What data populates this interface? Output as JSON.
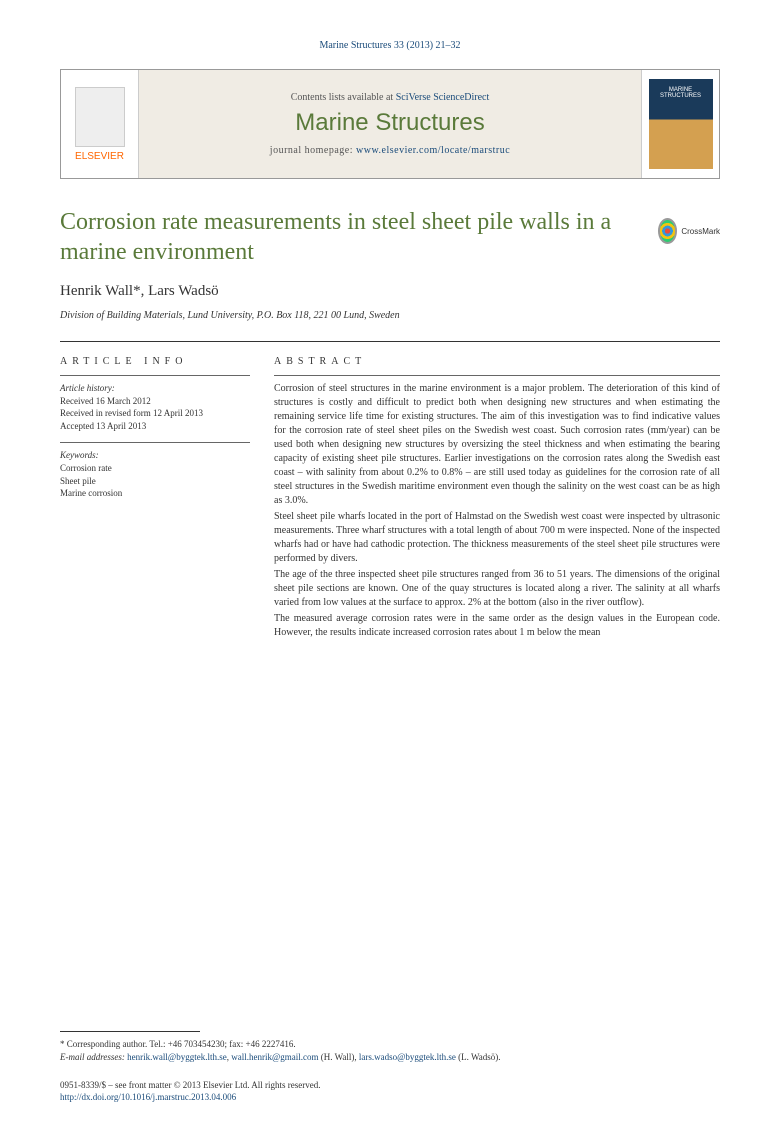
{
  "citation": "Marine Structures 33 (2013) 21–32",
  "journal_box": {
    "elsevier": "ELSEVIER",
    "contents_prefix": "Contents lists available at ",
    "contents_link": "SciVerse ScienceDirect",
    "journal_name": "Marine Structures",
    "homepage_prefix": "journal homepage: ",
    "homepage_url": "www.elsevier.com/locate/marstruc",
    "cover_line1": "MARINE",
    "cover_line2": "STRUCTURES"
  },
  "title": "Corrosion rate measurements in steel sheet pile walls in a marine environment",
  "crossmark": "CrossMark",
  "authors": "Henrik Wall*, Lars Wadsö",
  "affiliation": "Division of Building Materials, Lund University, P.O. Box 118, 221 00 Lund, Sweden",
  "article_info": {
    "head": "ARTICLE INFO",
    "history_label": "Article history:",
    "received": "Received 16 March 2012",
    "revised": "Received in revised form 12 April 2013",
    "accepted": "Accepted 13 April 2013",
    "keywords_label": "Keywords:",
    "keywords": [
      "Corrosion rate",
      "Sheet pile",
      "Marine corrosion"
    ]
  },
  "abstract": {
    "head": "ABSTRACT",
    "p1": "Corrosion of steel structures in the marine environment is a major problem. The deterioration of this kind of structures is costly and difficult to predict both when designing new structures and when estimating the remaining service life time for existing structures. The aim of this investigation was to find indicative values for the corrosion rate of steel sheet piles on the Swedish west coast. Such corrosion rates (mm/year) can be used both when designing new structures by oversizing the steel thickness and when estimating the bearing capacity of existing sheet pile structures. Earlier investigations on the corrosion rates along the Swedish east coast – with salinity from about 0.2% to 0.8% – are still used today as guidelines for the corrosion rate of all steel structures in the Swedish maritime environment even though the salinity on the west coast can be as high as 3.0%.",
    "p2": "Steel sheet pile wharfs located in the port of Halmstad on the Swedish west coast were inspected by ultrasonic measurements. Three wharf structures with a total length of about 700 m were inspected. None of the inspected wharfs had or have had cathodic protection. The thickness measurements of the steel sheet pile structures were performed by divers.",
    "p3": "The age of the three inspected sheet pile structures ranged from 36 to 51 years. The dimensions of the original sheet pile sections are known. One of the quay structures is located along a river. The salinity at all wharfs varied from low values at the surface to approx. 2% at the bottom (also in the river outflow).",
    "p4": "The measured average corrosion rates were in the same order as the design values in the European code. However, the results indicate increased corrosion rates about 1 m below the mean"
  },
  "footer": {
    "corresponding": "* Corresponding author. Tel.: +46 703454230; fax: +46 2227416.",
    "email_label": "E-mail addresses: ",
    "email1": "henrik.wall@byggtek.lth.se",
    "email1_sep": ", ",
    "email2": "wall.henrik@gmail.com",
    "email2_after": " (H. Wall), ",
    "email3": "lars.wadso@byggtek.lth.se",
    "email3_after": " (L. Wadsö).",
    "issn": "0951-8339/$ – see front matter © 2013 Elsevier Ltd. All rights reserved.",
    "doi": "http://dx.doi.org/10.1016/j.marstruc.2013.04.006"
  },
  "colors": {
    "link": "#1a4b7a",
    "journal_green": "#5a7a3a",
    "elsevier_orange": "#ff6600",
    "box_bg": "#f0ece4",
    "text": "#333333"
  }
}
